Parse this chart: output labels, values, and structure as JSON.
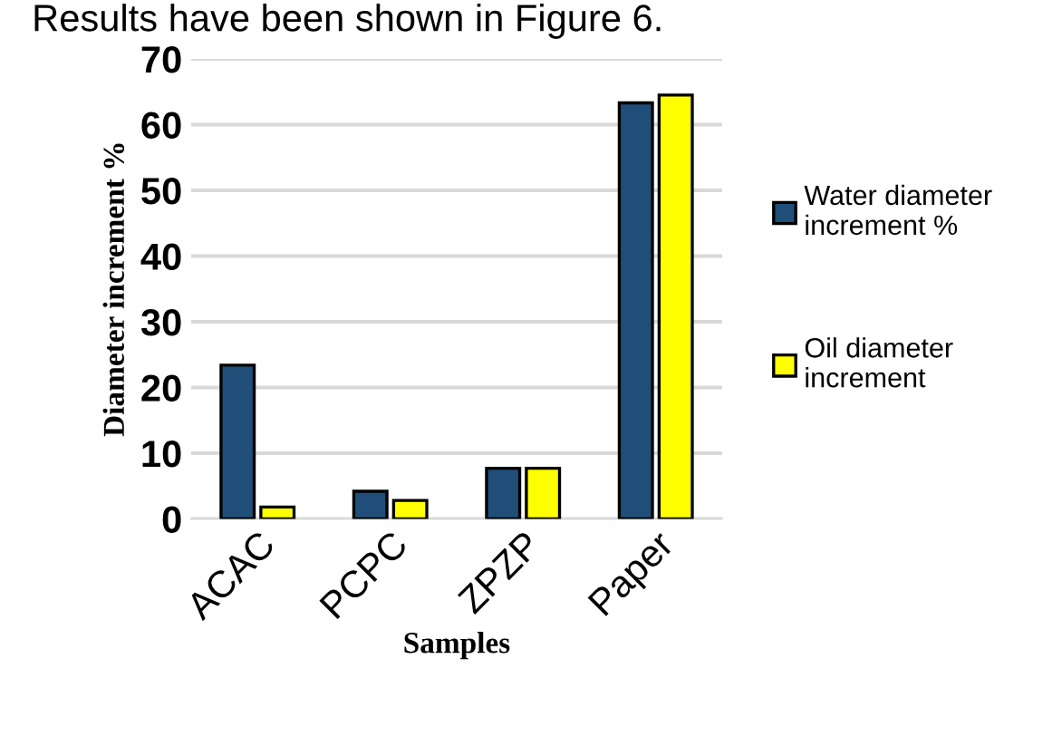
{
  "chart_data": {
    "type": "bar",
    "xlabel": "Samples",
    "ylabel": "Diameter increment %",
    "categories": [
      "ACAC",
      "PCPC",
      "ZPZP",
      "Paper"
    ],
    "series": [
      {
        "name": "Water diameter\nincrement %",
        "color": "#1f4e79",
        "values": [
          23.4,
          4.2,
          7.7,
          63.3
        ]
      },
      {
        "name": "Oil diameter\nincrement",
        "color": "#ffff00",
        "values": [
          1.8,
          2.8,
          7.7,
          64.5
        ]
      }
    ],
    "ylim": [
      0,
      70
    ],
    "yticks": [
      0,
      10,
      20,
      30,
      40,
      50,
      60,
      70
    ],
    "grid": "y",
    "legend": "right",
    "annotations": [
      "Results have been shown in Figure 6."
    ]
  }
}
